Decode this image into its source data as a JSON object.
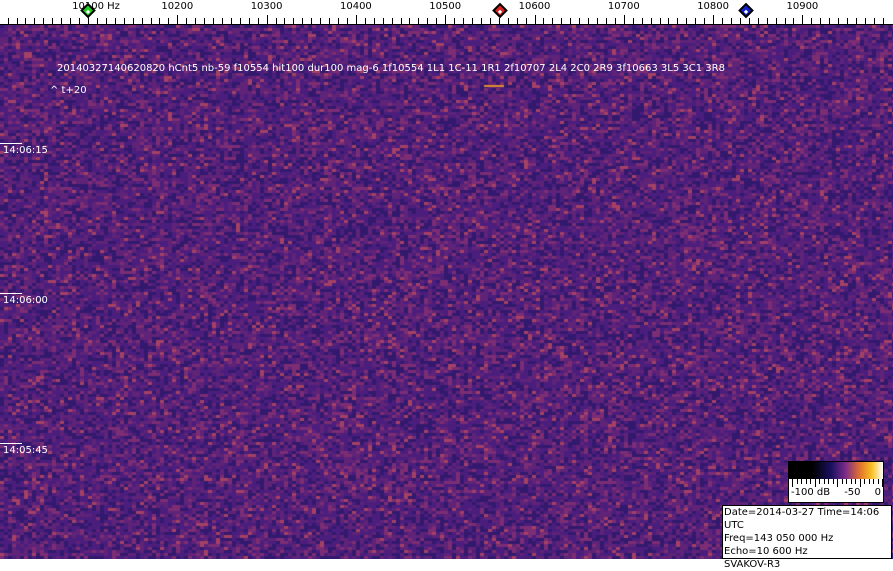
{
  "frequency_axis": {
    "unit_label": "10100 Hz",
    "labels": [
      {
        "freq": 10100,
        "text": "10100 Hz"
      },
      {
        "freq": 10200,
        "text": "10200"
      },
      {
        "freq": 10300,
        "text": "10300"
      },
      {
        "freq": 10400,
        "text": "10400"
      },
      {
        "freq": 10500,
        "text": "10500"
      },
      {
        "freq": 10600,
        "text": "10600"
      },
      {
        "freq": 10700,
        "text": "10700"
      },
      {
        "freq": 10800,
        "text": "10800"
      },
      {
        "freq": 10900,
        "text": "10900"
      }
    ],
    "range_hz": [
      10000,
      10990
    ],
    "markers": [
      {
        "name": "green-marker",
        "freq": 10100,
        "color": "#22cc22"
      },
      {
        "name": "red-marker",
        "freq": 10561,
        "color": "#dd2222"
      },
      {
        "name": "blue-marker",
        "freq": 10837,
        "color": "#1122cc"
      }
    ]
  },
  "detection": {
    "line1": "20140327140620820 hCnt5 nb-59 f10554 hit100 dur100 mag-6 1f10554 1L1 1C-11 1R1 2f10707 2L4 2C0 2R9 3f10663 3L5 3C1 3R8",
    "line2": "^ t+20"
  },
  "time_labels": [
    {
      "text": "14:06:15"
    },
    {
      "text": "14:06:00"
    },
    {
      "text": "14:05:45"
    }
  ],
  "colorbar": {
    "labels": [
      "-100 dB",
      "-50",
      "0"
    ]
  },
  "info": {
    "date_time": "Date=2014-03-27 Time=14:06 UTC",
    "freq": "Freq=143 050 000 Hz",
    "echo": "Echo=10 600 Hz",
    "station": "SVAKOV-R3"
  }
}
